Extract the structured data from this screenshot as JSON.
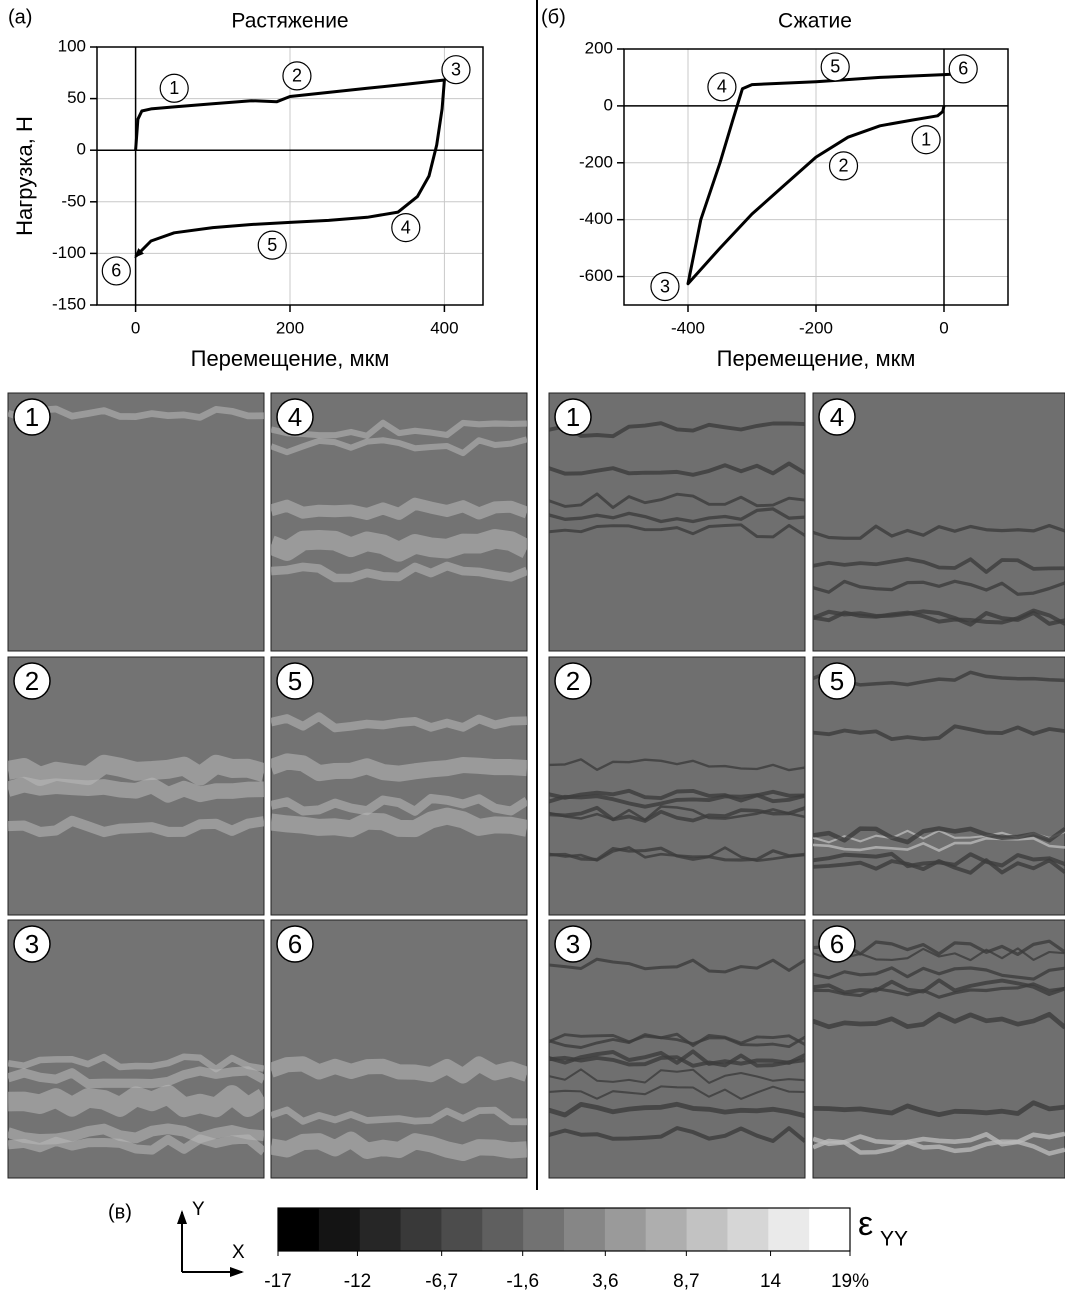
{
  "chart_data": [
    {
      "type": "line",
      "panel_label": "(а)",
      "title": "Растяжение",
      "x_label": "Перемещение, мкм",
      "y_label": "Нагрузка, Н",
      "xlim": [
        -50,
        450
      ],
      "xticks": [
        0,
        200,
        400
      ],
      "ylim": [
        -150,
        100
      ],
      "yticks": [
        -150,
        -100,
        -50,
        0,
        50,
        100
      ],
      "grid": true,
      "series": [
        {
          "color": "#000000",
          "x": [
            0,
            3,
            8,
            20,
            50,
            100,
            150,
            183,
            200,
            250,
            300,
            350,
            400,
            397,
            390,
            380,
            365,
            340,
            300,
            250,
            200,
            150,
            100,
            50,
            20,
            0
          ],
          "values": [
            0,
            30,
            38,
            40,
            42,
            45,
            48,
            47,
            52,
            56,
            60,
            64,
            68,
            40,
            5,
            -25,
            -45,
            -60,
            -65,
            -68,
            -70,
            -72,
            -75,
            -80,
            -88,
            -103
          ]
        }
      ],
      "annotations": [
        {
          "text": "1",
          "x": 50,
          "y": 60
        },
        {
          "text": "2",
          "x": 209,
          "y": 72
        },
        {
          "text": "3",
          "x": 415,
          "y": 78
        },
        {
          "text": "4",
          "x": 350,
          "y": -75
        },
        {
          "text": "5",
          "x": 177,
          "y": -92
        },
        {
          "text": "6",
          "x": -25,
          "y": -117
        }
      ]
    },
    {
      "type": "line",
      "panel_label": "(б)",
      "title": "Сжатие",
      "x_label": "Перемещение, мкм",
      "xlim": [
        -500,
        100
      ],
      "xticks": [
        -400,
        -200,
        0
      ],
      "ylim": [
        -700,
        200
      ],
      "yticks": [
        -600,
        -400,
        -200,
        0,
        200
      ],
      "grid": true,
      "series": [
        {
          "color": "#000000",
          "x": [
            0,
            -2,
            -10,
            -50,
            -100,
            -150,
            -200,
            -250,
            -300,
            -350,
            -400,
            -380,
            -350,
            -330,
            -315,
            -300,
            -200,
            -100,
            0,
            40
          ],
          "values": [
            0,
            -20,
            -35,
            -50,
            -70,
            -110,
            -180,
            -280,
            -380,
            -500,
            -625,
            -400,
            -200,
            -50,
            60,
            75,
            85,
            100,
            110,
            115
          ]
        }
      ],
      "annotations": [
        {
          "text": "1",
          "x": -28,
          "y": -119
        },
        {
          "text": "2",
          "x": -157,
          "y": -211
        },
        {
          "text": "3",
          "x": -436,
          "y": -635
        },
        {
          "text": "4",
          "x": -347,
          "y": 67
        },
        {
          "text": "5",
          "x": -170,
          "y": 137
        },
        {
          "text": "6",
          "x": 30,
          "y": 130
        }
      ]
    }
  ],
  "panels": [
    {
      "labels": [
        "1",
        "2",
        "3",
        "4",
        "5",
        "6"
      ],
      "style": "tension"
    },
    {
      "labels": [
        "1",
        "2",
        "3",
        "4",
        "5",
        "6"
      ],
      "style": "compression"
    }
  ],
  "colorbar": {
    "label": "(в)",
    "axis_y": "Y",
    "axis_x": "X",
    "symbol": "ε",
    "subscript": "YY",
    "lim": [
      -17,
      19
    ],
    "colors": [
      "#000000",
      "#141414",
      "#262626",
      "#393939",
      "#4c4c4c",
      "#5f5f5f",
      "#727272",
      "#868686",
      "#9a9a9a",
      "#aeaeae",
      "#c2c2c2",
      "#d6d6d6",
      "#eaeaea",
      "#ffffff"
    ],
    "ticks": [
      {
        "value": -17,
        "label": "-17"
      },
      {
        "value": -12,
        "label": "-12"
      },
      {
        "value": -6.7,
        "label": "-6,7"
      },
      {
        "value": -1.6,
        "label": "-1,6"
      },
      {
        "value": 3.6,
        "label": "3,6"
      },
      {
        "value": 8.7,
        "label": "8,7"
      },
      {
        "value": 14,
        "label": "14"
      },
      {
        "value": 19,
        "label": "19%"
      }
    ]
  }
}
